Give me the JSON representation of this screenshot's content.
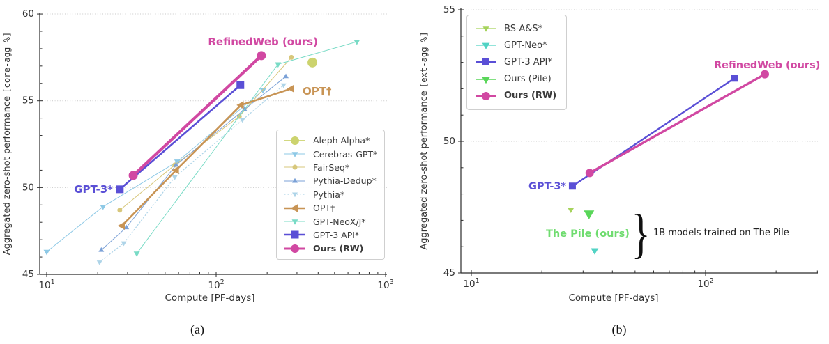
{
  "figure": {
    "captions": [
      "(a)",
      "(b)"
    ],
    "background": "#ffffff",
    "accent_color": "#d148a2"
  },
  "chart_data": [
    {
      "id": "a",
      "type": "line",
      "xscale": "log",
      "grid": "horizontal-dotted",
      "legend_position": "lower right",
      "xlabel": "Compute [PF-days]",
      "ylabel_text": "Aggregated zero-shot performance ",
      "ylabel_mono": "[core-agg %]",
      "xlim": [
        9.1,
        1020
      ],
      "ylim": [
        45,
        60
      ],
      "yticks": [
        45,
        50,
        55,
        60
      ],
      "xticks": [
        10,
        100,
        1000
      ],
      "series": [
        {
          "key": "aleph-alpha",
          "name": "Aleph Alpha*",
          "color": "#ccd36e",
          "marker": "circle",
          "marker_size": 7,
          "line_width": 1.8,
          "line_style": "solid",
          "bold": false,
          "z": 7,
          "points": [
            [
              370,
              57.2
            ]
          ]
        },
        {
          "key": "cerebras-gpt",
          "name": "Cerebras-GPT*",
          "color": "#8ec9e6",
          "marker": "triangle-down",
          "marker_size": 4.5,
          "line_width": 1,
          "line_style": "solid",
          "bold": false,
          "z": 1,
          "points": [
            [
              10,
              46.3
            ],
            [
              21.5,
              48.9
            ],
            [
              59,
              51.5
            ],
            [
              189,
              55.6
            ]
          ]
        },
        {
          "key": "fairseq",
          "name": "FairSeq*",
          "color": "#d7c77b",
          "marker": "circle",
          "marker_size": 3.5,
          "line_width": 1,
          "line_style": "solid",
          "bold": false,
          "z": 2,
          "points": [
            [
              27,
              48.7
            ],
            [
              57,
              51.3
            ],
            [
              137,
              54.1
            ],
            [
              278,
              57.5
            ]
          ]
        },
        {
          "key": "pythia-dedup",
          "name": "Pythia-Dedup*",
          "color": "#7ba1d7",
          "marker": "triangle-up",
          "marker_size": 4,
          "line_width": 1,
          "line_style": "solid",
          "bold": false,
          "z": 4,
          "points": [
            [
              21,
              46.4
            ],
            [
              29.5,
              47.7
            ],
            [
              58,
              51.3
            ],
            [
              147,
              54.5
            ],
            [
              258,
              56.4
            ]
          ]
        },
        {
          "key": "pythia",
          "name": "Pythia*",
          "color": "#aed4e8",
          "marker": "triangle-down",
          "marker_size": 4,
          "line_width": 1.2,
          "line_style": "dotted",
          "bold": false,
          "z": 3,
          "points": [
            [
              20.5,
              45.7
            ],
            [
              28.5,
              46.8
            ],
            [
              57,
              50.6
            ],
            [
              143,
              53.9
            ],
            [
              250,
              55.9
            ]
          ]
        },
        {
          "key": "opt",
          "name": "OPT†",
          "color": "#c89455",
          "marker": "triangle-left",
          "marker_size": 6,
          "line_width": 2.6,
          "line_style": "solid",
          "bold": false,
          "z": 6,
          "points": [
            [
              27.8,
              47.8
            ],
            [
              58,
              51.0
            ],
            [
              140,
              54.75
            ],
            [
              278,
              55.7
            ]
          ]
        },
        {
          "key": "gpt-neox-j",
          "name": "GPT-NeoX/J*",
          "color": "#79dbc6",
          "marker": "triangle-down",
          "marker_size": 4.5,
          "line_width": 1,
          "line_style": "solid",
          "bold": false,
          "z": 5,
          "points": [
            [
              34,
              46.2
            ],
            [
              232,
              57.1
            ],
            [
              677,
              58.4
            ]
          ]
        },
        {
          "key": "gpt-3-api",
          "name": "GPT-3 API*",
          "color": "#5a4fd6",
          "marker": "square",
          "marker_size": 5.5,
          "line_width": 2.6,
          "line_style": "solid",
          "bold": false,
          "z": 8,
          "points": [
            [
              27,
              49.9
            ],
            [
              139,
              55.9
            ]
          ]
        },
        {
          "key": "ours-rw",
          "name": "Ours (RW)",
          "color": "#d148a2",
          "marker": "circle",
          "marker_size": 6.5,
          "line_width": 4.2,
          "line_style": "solid",
          "bold": true,
          "z": 9,
          "points": [
            [
              32.4,
              50.7
            ],
            [
              185,
              57.6
            ]
          ]
        }
      ],
      "annotations": [
        {
          "text": "RefinedWeb (ours)",
          "x": 189,
          "y": 58.2,
          "color": "#d148a2",
          "bold": true,
          "anchor": "middle",
          "size": 15
        },
        {
          "text": "OPT†",
          "x": 324,
          "y": 55.35,
          "color": "#c89455",
          "bold": true,
          "anchor": "start",
          "size": 15
        },
        {
          "text": "GPT-3*",
          "x": 24.6,
          "y": 49.69,
          "color": "#5a4fd6",
          "bold": true,
          "anchor": "end",
          "size": 15
        }
      ]
    },
    {
      "id": "b",
      "type": "line",
      "xscale": "log",
      "grid": "horizontal-dotted",
      "legend_position": "upper left",
      "xlabel": "Compute [PF-days]",
      "ylabel_text": "Aggregated zero-shot performance ",
      "ylabel_mono": "[ext-agg %]",
      "xlim": [
        9.0,
        301
      ],
      "ylim": [
        45,
        55
      ],
      "yticks": [
        45,
        50,
        55
      ],
      "xticks": [
        10,
        100
      ],
      "series": [
        {
          "key": "bs-as",
          "name": "BS-A&S*",
          "color": "#a6d35c",
          "marker": "triangle-down",
          "marker_size": 4.5,
          "line_width": 1.2,
          "line_style": "solid",
          "bold": false,
          "z": 1,
          "points": [
            [
              26.6,
              47.4
            ]
          ]
        },
        {
          "key": "gpt-neo",
          "name": "GPT-Neo*",
          "color": "#52d3c4",
          "marker": "triangle-down",
          "marker_size": 5.5,
          "line_width": 1.2,
          "line_style": "solid",
          "bold": false,
          "z": 2,
          "points": [
            [
              33.6,
              45.85
            ]
          ]
        },
        {
          "key": "gpt-3-api",
          "name": "GPT-3 API*",
          "color": "#5a4fd6",
          "marker": "square",
          "marker_size": 5,
          "line_width": 2.4,
          "line_style": "solid",
          "bold": false,
          "z": 3,
          "points": [
            [
              27,
              48.3
            ],
            [
              133,
              52.4
            ]
          ]
        },
        {
          "key": "ours-pile",
          "name": "Ours (Pile)",
          "color": "#59d659",
          "marker": "triangle-down",
          "marker_size": 7.5,
          "line_width": 1.4,
          "line_style": "solid",
          "bold": false,
          "z": 4,
          "points": [
            [
              31.8,
              47.25
            ]
          ]
        },
        {
          "key": "ours-rw",
          "name": "Ours (RW)",
          "color": "#d148a2",
          "marker": "circle",
          "marker_size": 6,
          "line_width": 3.4,
          "line_style": "solid",
          "bold": true,
          "z": 5,
          "points": [
            [
              32,
              48.8
            ],
            [
              179,
              52.55
            ]
          ]
        }
      ],
      "annotations": [
        {
          "text": "RefinedWeb (ours)",
          "x": 183,
          "y": 52.78,
          "color": "#d148a2",
          "bold": true,
          "anchor": "middle",
          "size": 14.5
        },
        {
          "text": "GPT-3*",
          "x": 25.4,
          "y": 48.17,
          "color": "#5a4fd6",
          "bold": true,
          "anchor": "end",
          "size": 14.5
        },
        {
          "text": "The Pile (ours)",
          "x": 31.4,
          "y": 46.38,
          "color": "#6fdc6f",
          "bold": true,
          "anchor": "middle",
          "size": 14.5
        },
        {
          "text": "}",
          "x": 52.9,
          "y": 46.51,
          "color": "#111111",
          "bold": false,
          "anchor": "middle",
          "size": 78,
          "serif": true,
          "vcenter": true,
          "scale_x": 0.72
        },
        {
          "text": "1B models trained on The Pile",
          "x": 59.8,
          "y": 46.43,
          "color": "#222222",
          "bold": false,
          "anchor": "start",
          "size": 13
        }
      ]
    }
  ]
}
